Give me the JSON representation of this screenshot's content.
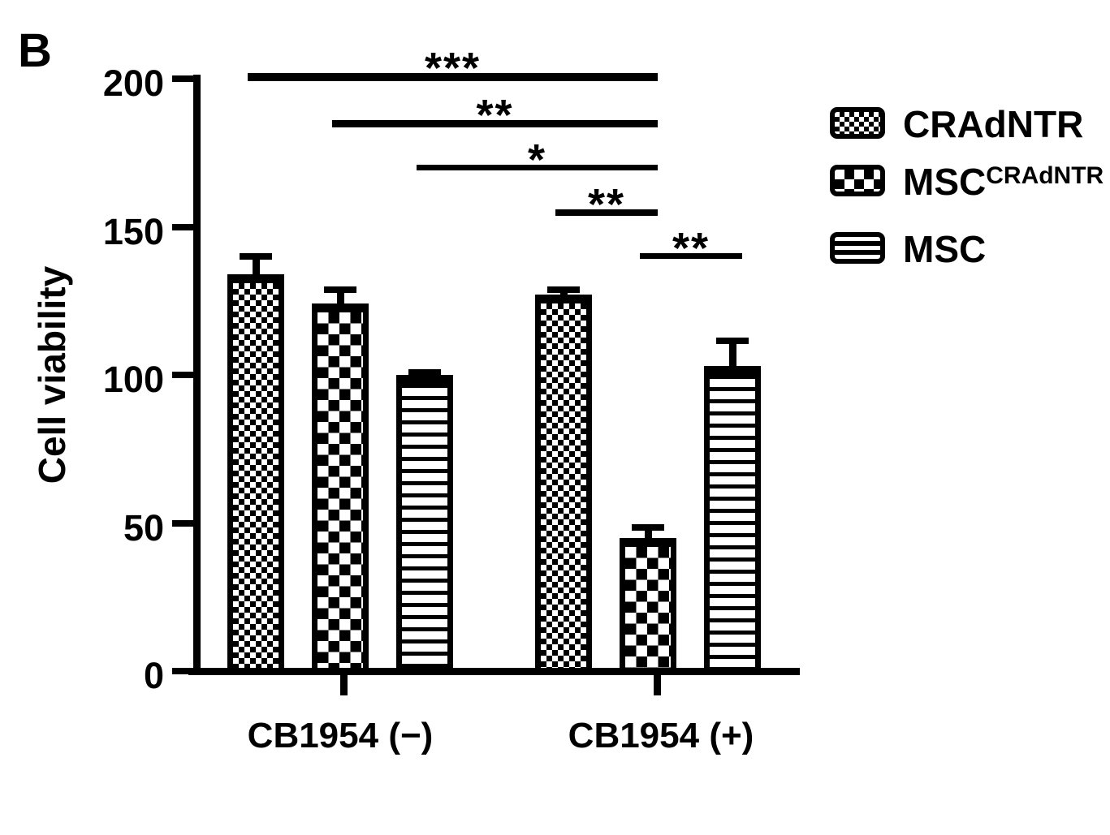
{
  "panel_label": "B",
  "background": "#ffffff",
  "ink_color": "#000000",
  "chart_data": {
    "type": "bar",
    "title": "",
    "ylabel": "Cell viability",
    "xlabel": "",
    "ylim": [
      0,
      200
    ],
    "yticks": [
      0,
      50,
      100,
      150,
      200
    ],
    "grid": false,
    "legend_position": "right",
    "categories": [
      "CB1954 (−)",
      "CB1954 (+)"
    ],
    "series": [
      {
        "name": "CRAdNTR",
        "superscript": "",
        "pattern": "fine-check",
        "values": [
          134,
          127
        ],
        "errors": [
          7,
          3
        ]
      },
      {
        "name": "MSC",
        "superscript": "CRAdNTR",
        "pattern": "big-check",
        "values": [
          124,
          45
        ],
        "errors": [
          6,
          4.5
        ]
      },
      {
        "name": "MSC",
        "superscript": "",
        "pattern": "h-lines",
        "values": [
          100,
          103
        ],
        "errors": [
          2,
          9.5
        ]
      }
    ],
    "significance": [
      {
        "label": "***",
        "from": {
          "group": 0,
          "series": 0
        },
        "to": {
          "group": 1,
          "series": 1
        }
      },
      {
        "label": "**",
        "from": {
          "group": 0,
          "series": 1
        },
        "to": {
          "group": 1,
          "series": 1
        }
      },
      {
        "label": "*",
        "from": {
          "group": 0,
          "series": 2
        },
        "to": {
          "group": 1,
          "series": 1
        }
      },
      {
        "label": "**",
        "from": {
          "group": 1,
          "series": 0
        },
        "to": {
          "group": 1,
          "series": 1
        }
      },
      {
        "label": "**",
        "from": {
          "group": 1,
          "series": 1
        },
        "to": {
          "group": 1,
          "series": 2
        }
      }
    ]
  }
}
